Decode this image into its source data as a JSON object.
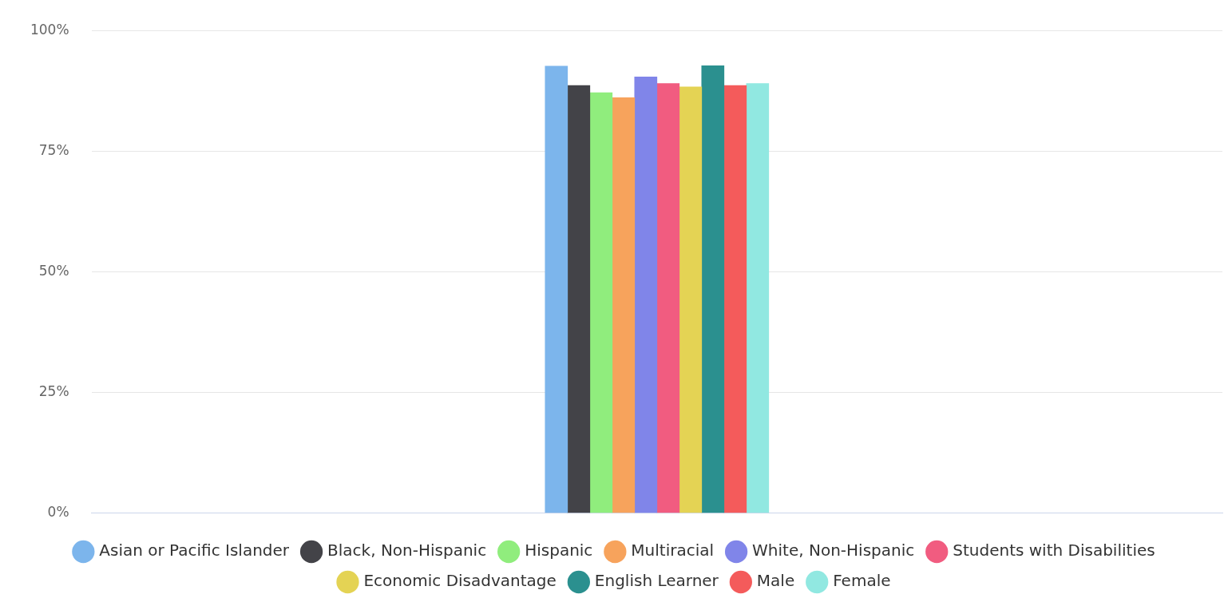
{
  "chart_data": {
    "type": "bar",
    "categories": [
      null
    ],
    "series": [
      {
        "name": "Asian or Pacific Islander",
        "color": "#7cb5ec",
        "values": [
          92.6
        ]
      },
      {
        "name": "Black, Non-Hispanic",
        "color": "#434348",
        "values": [
          88.6
        ]
      },
      {
        "name": "Hispanic",
        "color": "#90ed7d",
        "values": [
          87.1
        ]
      },
      {
        "name": "Multiracial",
        "color": "#f7a35c",
        "values": [
          86.1
        ]
      },
      {
        "name": "White, Non-Hispanic",
        "color": "#8085e9",
        "values": [
          90.4
        ]
      },
      {
        "name": "Students with Disabilities",
        "color": "#f15c80",
        "values": [
          89.0
        ]
      },
      {
        "name": "Economic Disadvantage",
        "color": "#e4d354",
        "values": [
          88.3
        ]
      },
      {
        "name": "English Learner",
        "color": "#2b908f",
        "values": [
          92.7
        ]
      },
      {
        "name": "Male",
        "color": "#f45b5b",
        "values": [
          88.6
        ]
      },
      {
        "name": "Female",
        "color": "#91e8e1",
        "values": [
          89.0
        ]
      }
    ],
    "ylim": [
      0,
      100
    ],
    "yticks": [
      {
        "value": 0,
        "label": "0%"
      },
      {
        "value": 25,
        "label": "25%"
      },
      {
        "value": 50,
        "label": "50%"
      },
      {
        "value": 75,
        "label": "75%"
      },
      {
        "value": 100,
        "label": "100%"
      }
    ],
    "grid": "y",
    "legend": "bottom"
  }
}
